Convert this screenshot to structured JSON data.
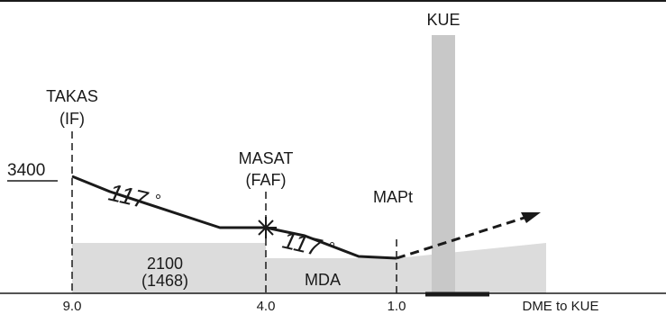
{
  "fixes": {
    "takas": {
      "name": "TAKAS",
      "role": "(IF)",
      "dme": "9.0"
    },
    "masat": {
      "name": "MASAT",
      "role": "(FAF)",
      "dme": "4.0"
    },
    "mapt": {
      "name": "MAPt",
      "dme": "1.0"
    }
  },
  "navaid": {
    "name": "KUE"
  },
  "altitude": {
    "value": "3400"
  },
  "segments": {
    "initial_course": "117",
    "final_course": "117",
    "degree_symbol": "°"
  },
  "obstacle_area": {
    "altitude": "2100",
    "height": "(1468)"
  },
  "mda_label": "MDA",
  "axis": {
    "label": "DME to KUE"
  },
  "colors": {
    "terrain": "#dcdcdc",
    "navaid_bar": "#c8c8c8",
    "line": "#1a1a1a"
  }
}
